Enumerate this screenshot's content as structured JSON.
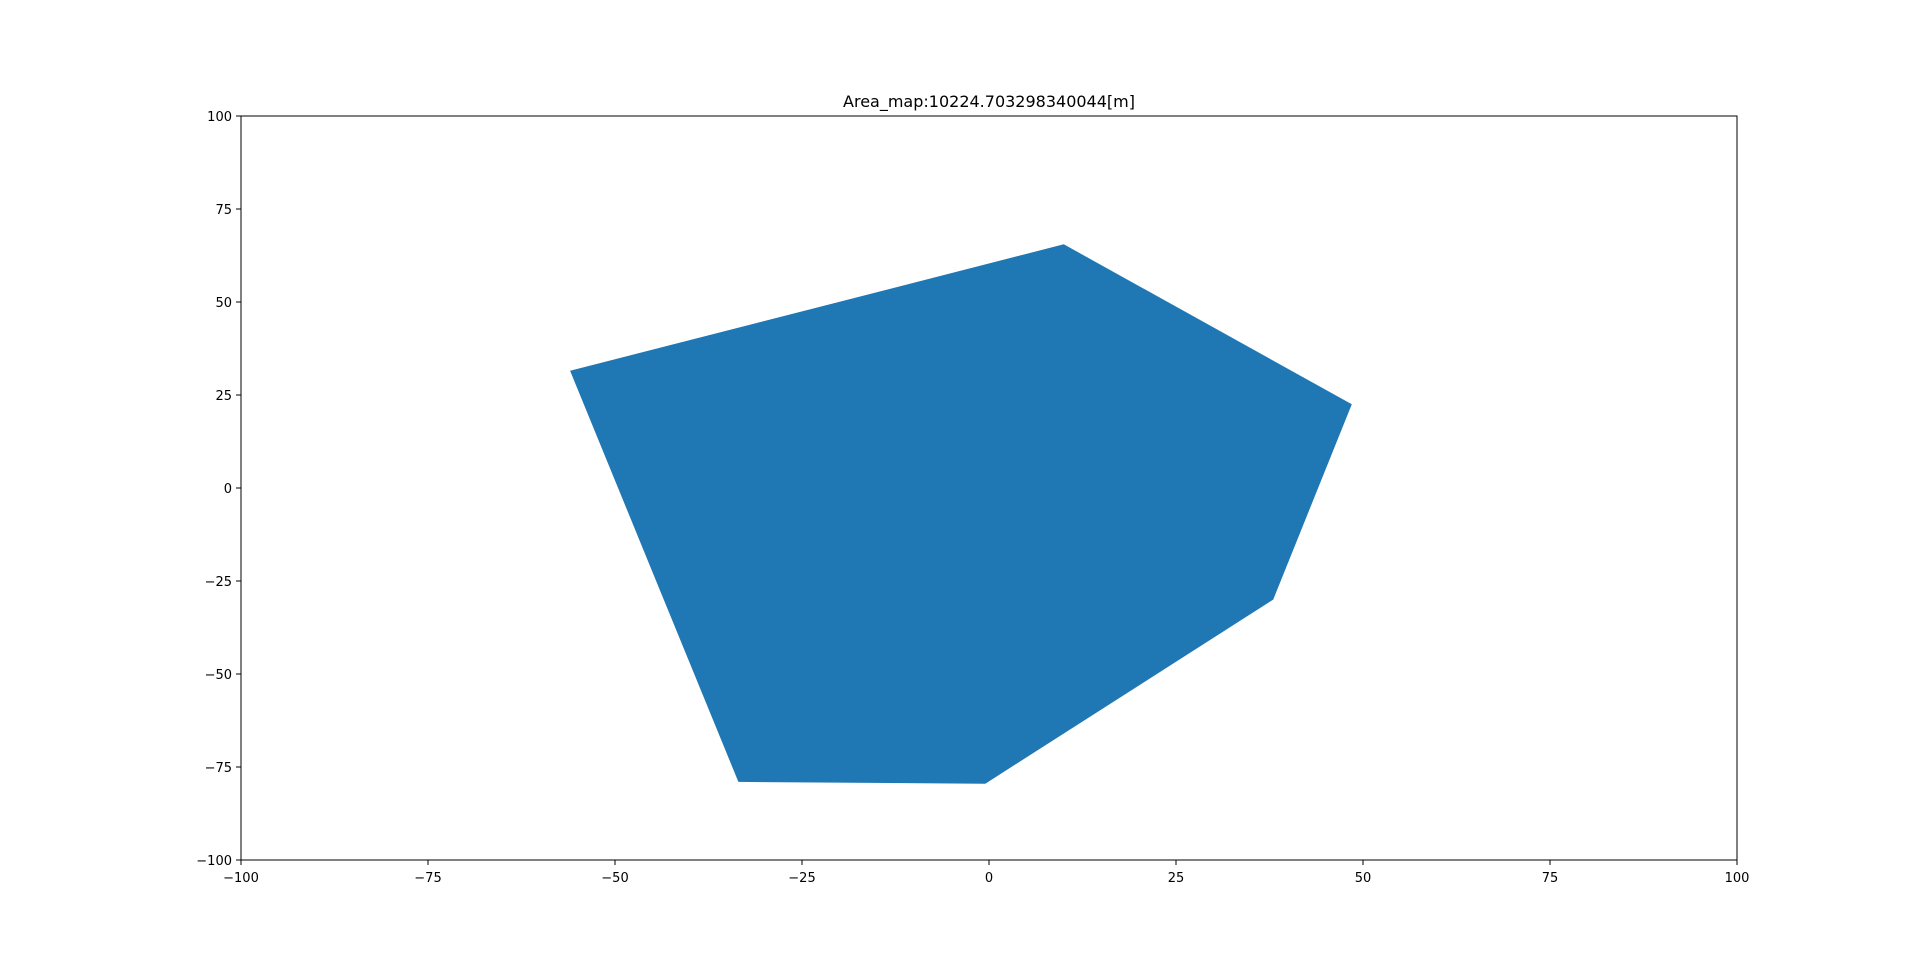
{
  "chart_data": {
    "type": "area",
    "title": "Area_map:10224.703298340044[m]",
    "xlabel": "",
    "ylabel": "",
    "xlim": [
      -100,
      100
    ],
    "ylim": [
      -100,
      100
    ],
    "grid": false,
    "fill_color": "#1f77b4",
    "x_ticks": [
      -100,
      -75,
      -50,
      -25,
      0,
      25,
      50,
      75,
      100
    ],
    "y_ticks": [
      -100,
      -75,
      -50,
      -25,
      0,
      25,
      50,
      75,
      100
    ],
    "x_tick_labels": [
      "−100",
      "−75",
      "−50",
      "−25",
      "0",
      "25",
      "50",
      "75",
      "100"
    ],
    "y_tick_labels": [
      "−100",
      "−75",
      "−50",
      "−25",
      "0",
      "25",
      "50",
      "75",
      "100"
    ],
    "polygon": {
      "x": [
        -56,
        10,
        48.5,
        38,
        -0.5,
        -33.5
      ],
      "y": [
        31.5,
        65.5,
        22.5,
        -30,
        -79.5,
        -79
      ]
    }
  }
}
